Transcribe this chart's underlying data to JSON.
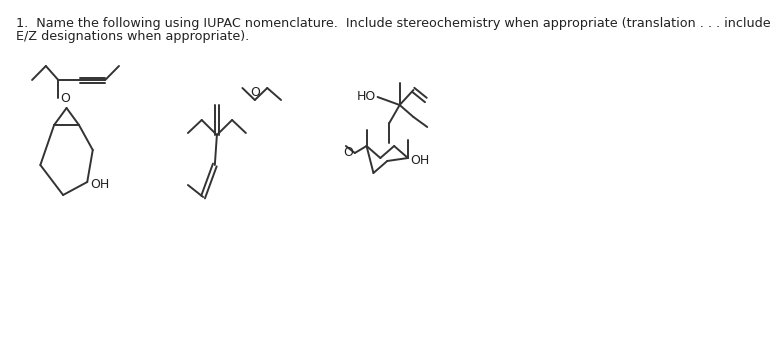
{
  "title_line1": "1.  Name the following using IUPAC nomenclature.  Include stereochemistry when appropriate (translation . . . include",
  "title_line2": "E/Z designations when appropriate).",
  "bg_color": "#ffffff",
  "line_color": "#333333",
  "text_color": "#222222",
  "title_fontsize": 9.2,
  "label_fontsize": 9.0
}
